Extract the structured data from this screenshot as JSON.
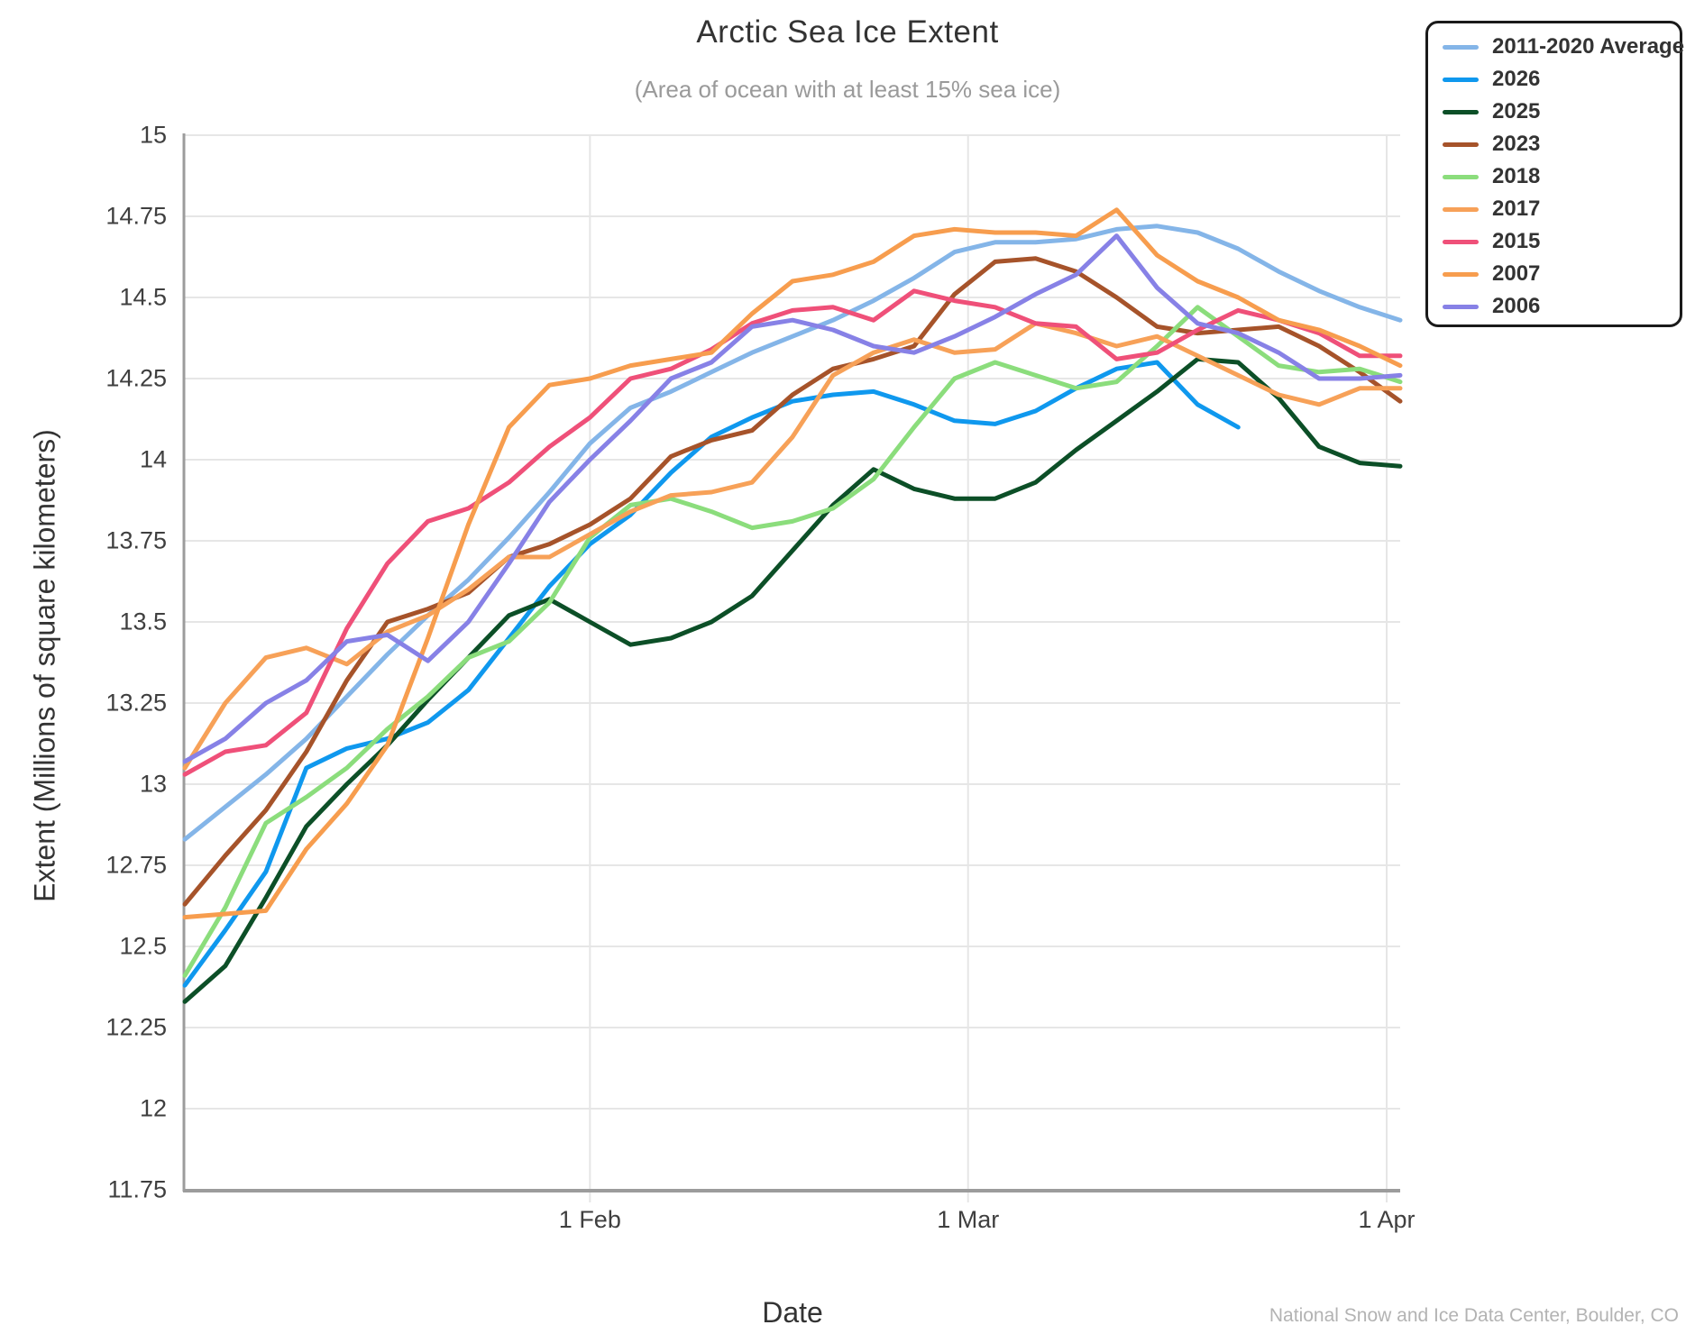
{
  "title": "Arctic Sea Ice Extent",
  "subtitle": "(Area of ocean with at least 15% sea ice)",
  "footer": "National Snow and Ice Data Center, Boulder, CO",
  "chart_data": {
    "type": "line",
    "title": "Arctic Sea Ice Extent",
    "subtitle": "(Area of ocean with at least 15% sea ice)",
    "xlabel": "Date",
    "ylabel": "Extent (Millions of square kilometers)",
    "ylim": [
      11.75,
      15
    ],
    "ytick_step": 0.25,
    "x_day_range": [
      1,
      91
    ],
    "xticks": [
      {
        "label": "1 Feb",
        "day": 31
      },
      {
        "label": "1 Mar",
        "day": 59
      },
      {
        "label": "1 Apr",
        "day": 90
      }
    ],
    "grid": true,
    "legend_position": "top-right",
    "colors": {
      "grid": "#e6e6e6",
      "axis": "#9c9c9c",
      "tick_text": "#3f3f3f",
      "title_text": "#333333",
      "subtitle_text": "#9a9a9a"
    },
    "dates": [
      "Jan 2",
      "Jan 5",
      "Jan 8",
      "Jan 11",
      "Jan 14",
      "Jan 17",
      "Jan 20",
      "Jan 23",
      "Jan 26",
      "Jan 29",
      "Feb 1",
      "Feb 4",
      "Feb 7",
      "Feb 10",
      "Feb 13",
      "Feb 16",
      "Feb 19",
      "Feb 22",
      "Feb 25",
      "Feb 28",
      "Mar 3",
      "Mar 6",
      "Mar 9",
      "Mar 12",
      "Mar 15",
      "Mar 18",
      "Mar 21",
      "Mar 24",
      "Mar 27",
      "Mar 30",
      "Apr 2"
    ],
    "days": [
      1,
      4,
      7,
      10,
      13,
      16,
      19,
      22,
      25,
      28,
      31,
      34,
      37,
      40,
      43,
      46,
      49,
      52,
      55,
      58,
      61,
      64,
      67,
      70,
      73,
      76,
      79,
      82,
      85,
      88,
      91
    ],
    "series": [
      {
        "name": "2011-2020 Average",
        "color": "#84b5e8",
        "values": [
          12.83,
          12.93,
          13.03,
          13.14,
          13.27,
          13.4,
          13.52,
          13.63,
          13.76,
          13.9,
          14.05,
          14.16,
          14.21,
          14.27,
          14.33,
          14.38,
          14.43,
          14.49,
          14.56,
          14.64,
          14.67,
          14.67,
          14.68,
          14.71,
          14.72,
          14.7,
          14.65,
          14.58,
          14.52,
          14.47,
          14.43
        ]
      },
      {
        "name": "2026",
        "color": "#0f98ee",
        "values": [
          12.38,
          12.55,
          12.73,
          13.05,
          13.11,
          13.14,
          13.19,
          13.29,
          13.45,
          13.61,
          13.74,
          13.83,
          13.96,
          14.07,
          14.13,
          14.18,
          14.2,
          14.21,
          14.17,
          14.12,
          14.11,
          14.15,
          14.22,
          14.28,
          14.3,
          14.17,
          14.1,
          null,
          null,
          null,
          null
        ]
      },
      {
        "name": "2025",
        "color": "#0c4f27",
        "values": [
          12.33,
          12.44,
          12.65,
          12.87,
          13.0,
          13.12,
          13.26,
          13.39,
          13.52,
          13.57,
          13.5,
          13.43,
          13.45,
          13.5,
          13.58,
          13.72,
          13.86,
          13.97,
          13.91,
          13.88,
          13.88,
          13.93,
          14.03,
          14.12,
          14.21,
          14.31,
          14.3,
          14.19,
          14.04,
          13.99,
          13.98
        ]
      },
      {
        "name": "2023",
        "color": "#a6532a",
        "values": [
          12.63,
          12.78,
          12.92,
          13.1,
          13.32,
          13.5,
          13.54,
          13.59,
          13.7,
          13.74,
          13.8,
          13.88,
          14.01,
          14.06,
          14.09,
          14.2,
          14.28,
          14.31,
          14.35,
          14.51,
          14.61,
          14.62,
          14.58,
          14.5,
          14.41,
          14.39,
          14.4,
          14.41,
          14.35,
          14.27,
          14.18
        ]
      },
      {
        "name": "2018",
        "color": "#8bdd7c",
        "values": [
          12.41,
          12.62,
          12.88,
          12.96,
          13.05,
          13.17,
          13.27,
          13.39,
          13.44,
          13.56,
          13.76,
          13.86,
          13.88,
          13.84,
          13.79,
          13.81,
          13.85,
          13.94,
          14.1,
          14.25,
          14.3,
          14.26,
          14.22,
          14.24,
          14.35,
          14.47,
          14.38,
          14.29,
          14.27,
          14.28,
          14.24
        ]
      },
      {
        "name": "2017",
        "color": "#f7a158",
        "values": [
          13.05,
          13.25,
          13.39,
          13.42,
          13.37,
          13.47,
          13.52,
          13.6,
          13.7,
          13.7,
          13.77,
          13.84,
          13.89,
          13.9,
          13.93,
          14.07,
          14.26,
          14.33,
          14.37,
          14.33,
          14.34,
          14.42,
          14.39,
          14.35,
          14.38,
          14.32,
          14.26,
          14.2,
          14.17,
          14.22,
          14.22
        ]
      },
      {
        "name": "2015",
        "color": "#ef5079",
        "values": [
          13.03,
          13.1,
          13.12,
          13.22,
          13.48,
          13.68,
          13.81,
          13.85,
          13.93,
          14.04,
          14.13,
          14.25,
          14.28,
          14.34,
          14.42,
          14.46,
          14.47,
          14.43,
          14.52,
          14.49,
          14.47,
          14.42,
          14.41,
          14.31,
          14.33,
          14.4,
          14.46,
          14.43,
          14.39,
          14.32,
          14.32
        ]
      },
      {
        "name": "2007",
        "color": "#f79d4e",
        "values": [
          12.59,
          12.6,
          12.61,
          12.8,
          12.94,
          13.12,
          13.45,
          13.8,
          14.1,
          14.23,
          14.25,
          14.29,
          14.31,
          14.33,
          14.45,
          14.55,
          14.57,
          14.61,
          14.69,
          14.71,
          14.7,
          14.7,
          14.69,
          14.77,
          14.63,
          14.55,
          14.5,
          14.43,
          14.4,
          14.35,
          14.29
        ]
      },
      {
        "name": "2006",
        "color": "#8781e6",
        "values": [
          13.07,
          13.14,
          13.25,
          13.32,
          13.44,
          13.46,
          13.38,
          13.5,
          13.68,
          13.87,
          14.0,
          14.12,
          14.25,
          14.3,
          14.41,
          14.43,
          14.4,
          14.35,
          14.33,
          14.38,
          14.44,
          14.51,
          14.57,
          14.69,
          14.53,
          14.42,
          14.39,
          14.33,
          14.25,
          14.25,
          14.26
        ]
      }
    ]
  }
}
